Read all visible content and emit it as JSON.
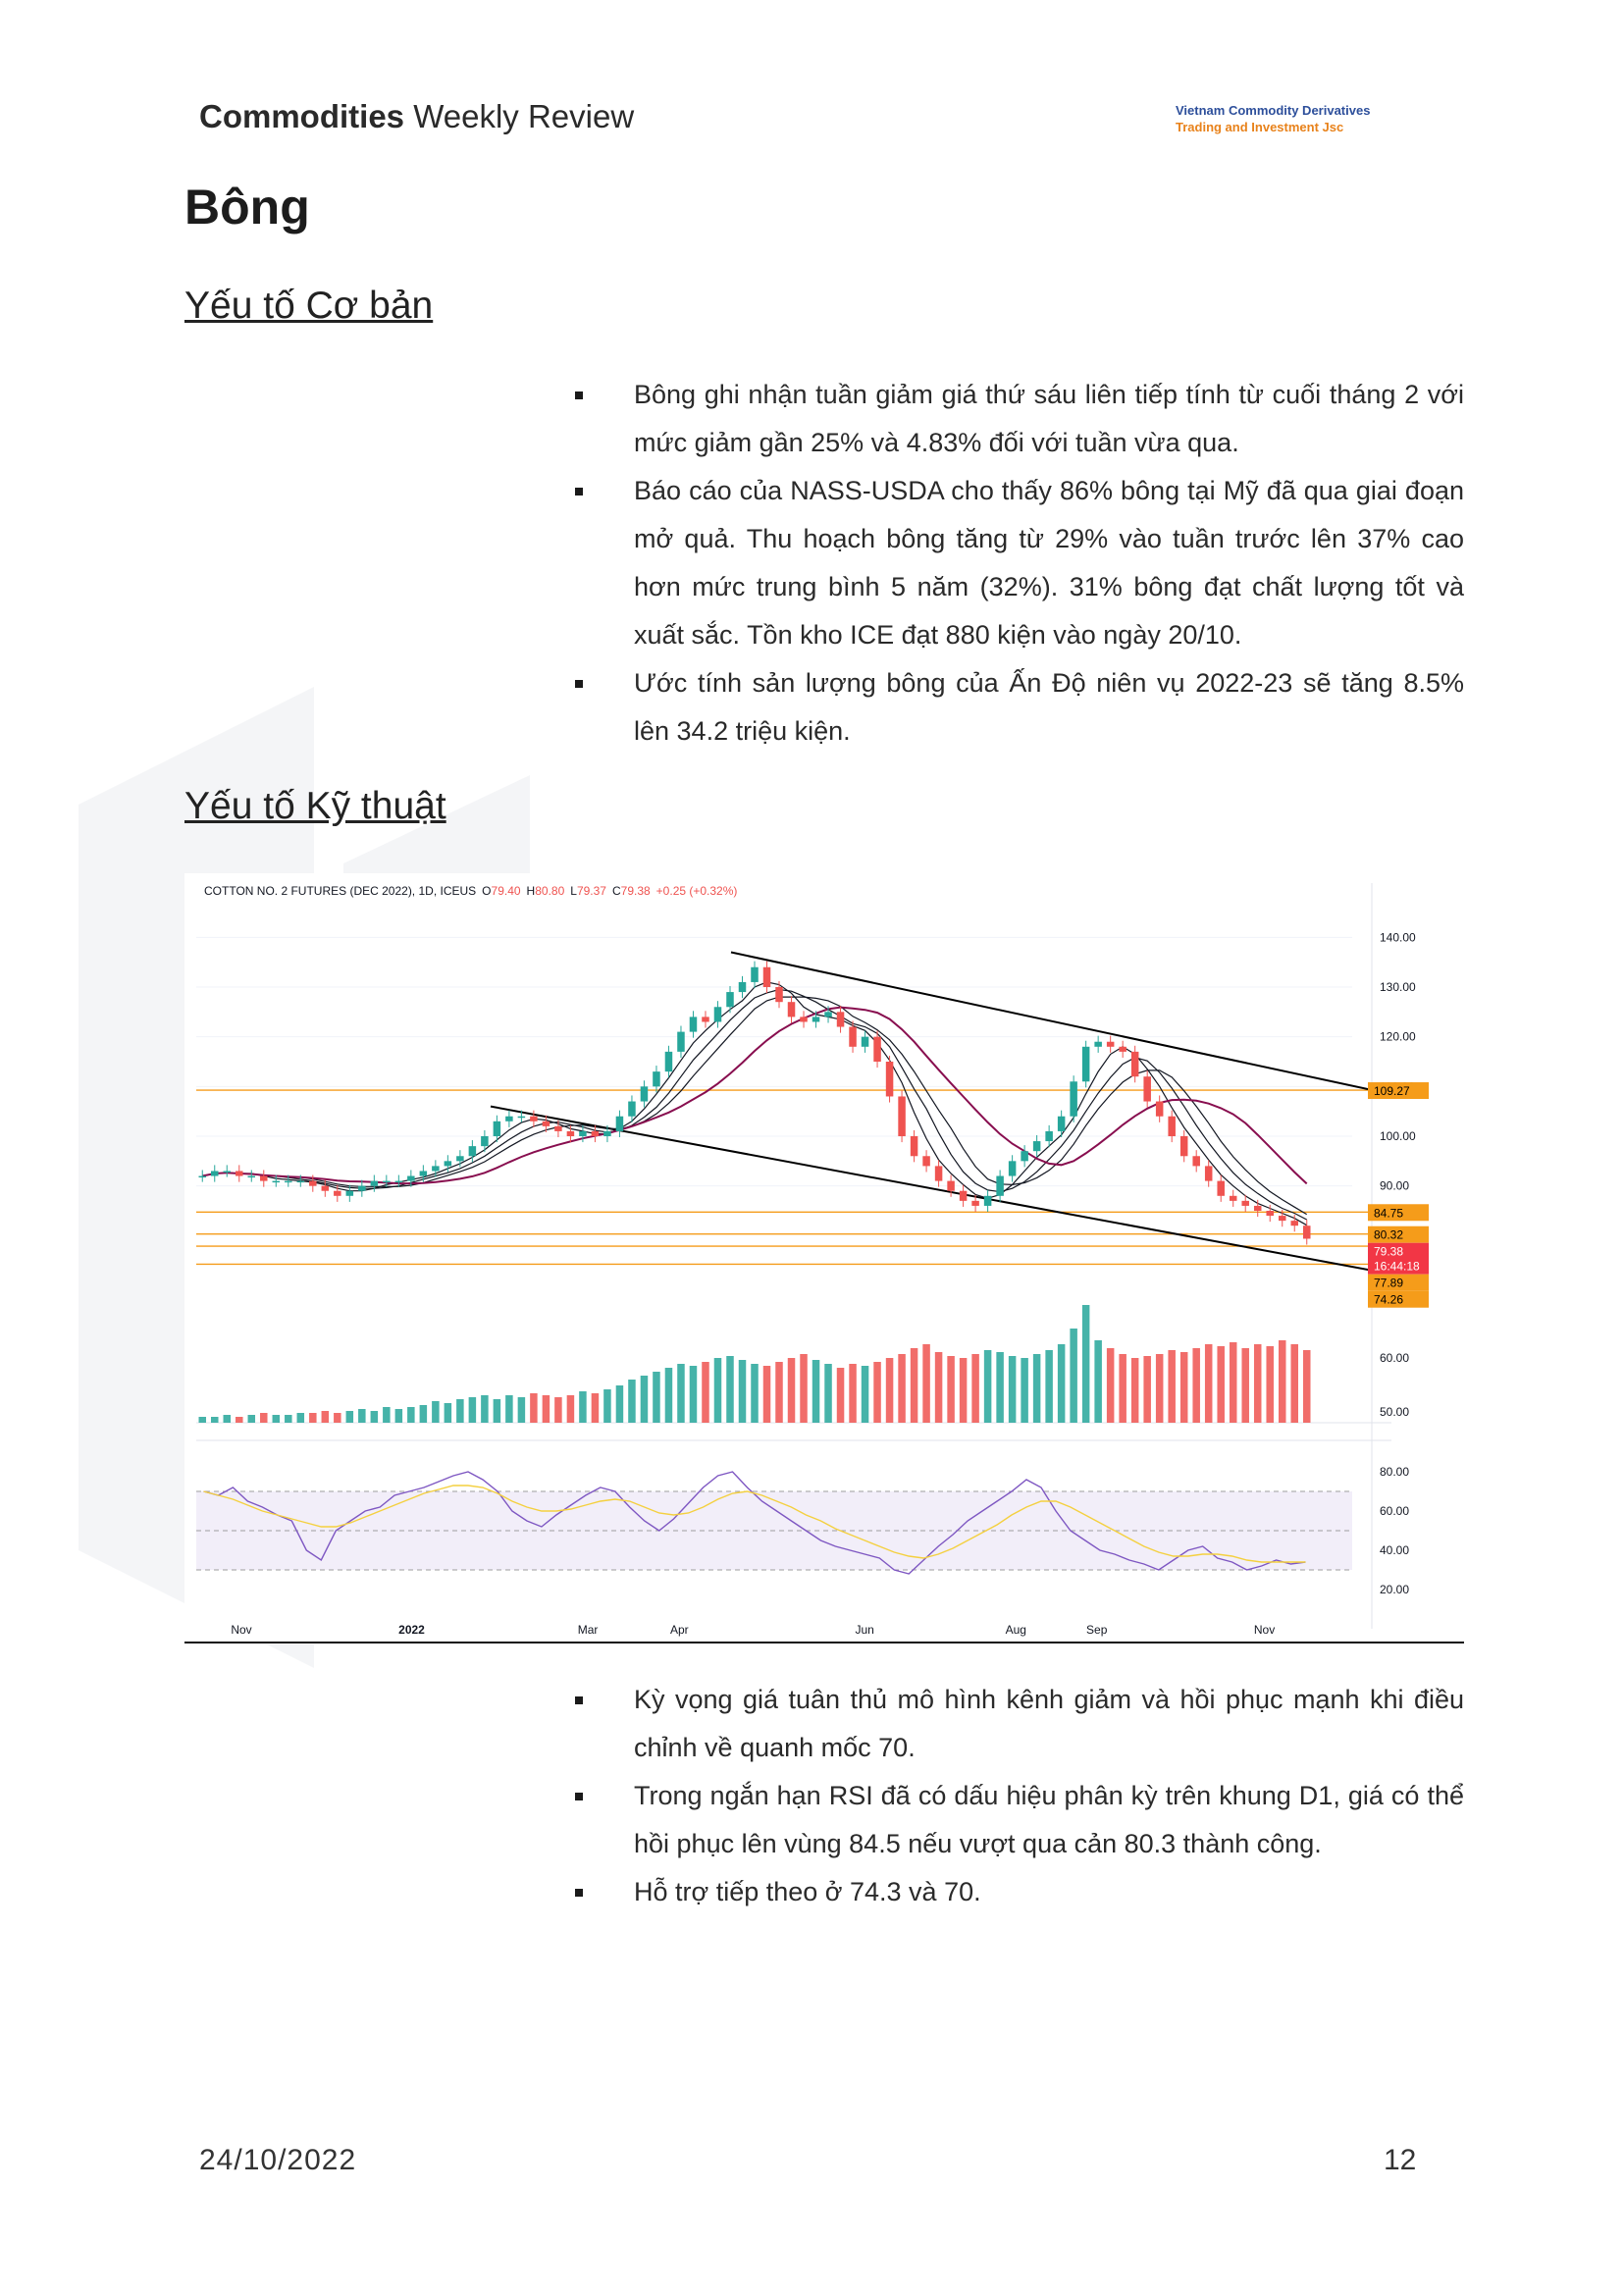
{
  "header": {
    "title_bold": "Commodities",
    "title_rest": " Weekly Review",
    "company_line1": "Vietnam Commodity Derivatives",
    "company_line2": "Trading and Investment Jsc"
  },
  "page_title": "Bông",
  "sections": {
    "fundamental_title": "Yếu tố Cơ bản",
    "technical_title": "Yếu tố Kỹ thuật"
  },
  "fundamental_bullets": [
    "Bông ghi nhận tuần giảm giá thứ sáu liên tiếp tính từ cuối tháng 2 với mức giảm gần 25% và 4.83% đối với tuần vừa qua.",
    "Báo cáo của NASS-USDA cho thấy 86% bông tại Mỹ đã qua giai đoạn mở quả. Thu hoạch bông tăng từ 29% vào tuần trước lên 37% cao hơn mức trung bình 5 năm (32%). 31% bông đạt chất lượng tốt và xuất sắc. Tồn kho ICE đạt 880 kiện vào ngày 20/10.",
    "Ước tính sản lượng bông của Ấn Độ niên vụ 2022-23 sẽ tăng 8.5% lên 34.2 triệu kiện."
  ],
  "technical_bullets": [
    "Kỳ vọng giá tuân thủ mô hình kênh giảm và hồi phục mạnh khi điều chỉnh về quanh mốc 70.",
    "Trong ngắn hạn RSI đã có dấu hiệu phân kỳ trên khung D1, giá có thể hồi phục lên vùng 84.5 nếu vượt qua cản 80.3 thành công.",
    "Hỗ trợ tiếp theo ở 74.3 và 70."
  ],
  "footer": {
    "date": "24/10/2022",
    "page": "12"
  },
  "chart_data": {
    "type": "candlestick",
    "legend": {
      "symbol": "COTTON NO. 2 FUTURES (DEC 2022), 1D, ICEUS",
      "o_label": "O",
      "o": "79.40",
      "h_label": "H",
      "h": "80.80",
      "l_label": "L",
      "l": "79.37",
      "c_label": "C",
      "c": "79.38",
      "change": "+0.25 (+0.32%)"
    },
    "price_ticks": [
      "140.00",
      "130.00",
      "120.00",
      "110.00",
      "100.00",
      "90.00"
    ],
    "volume_ticks": [
      "60.00",
      "50.00"
    ],
    "rsi_ticks": [
      "80.00",
      "60.00",
      "40.00",
      "20.00"
    ],
    "x_ticks": [
      "Nov",
      "2022",
      "Mar",
      "Apr",
      "Jun",
      "Aug",
      "Sep",
      "Nov"
    ],
    "price_range": [
      70,
      145
    ],
    "horizontal_levels": [
      {
        "value": 109.27,
        "label": "109.27"
      },
      {
        "value": 84.75,
        "label": "84.75"
      },
      {
        "value": 80.32,
        "label": "80.32"
      },
      {
        "value": 77.89,
        "label": "77.89"
      },
      {
        "value": 74.26,
        "label": "74.26"
      }
    ],
    "last_price": {
      "value": 79.38,
      "label": "79.38",
      "countdown": "16:44:18"
    },
    "colors": {
      "up": "#26a69a",
      "down": "#ef5350",
      "level": "#f59c1a",
      "last": "#f23645",
      "rsi": "#7e57c2",
      "rsi_ma": "#f4d03f",
      "ma_long": "#880e4f"
    },
    "closes": [
      92,
      93,
      93,
      92,
      92,
      91,
      91,
      91,
      91,
      90,
      89,
      88,
      89,
      90,
      91,
      91,
      91,
      92,
      93,
      94,
      95,
      96,
      98,
      100,
      103,
      104,
      104,
      103,
      102,
      101,
      100,
      101,
      100,
      101,
      104,
      107,
      110,
      113,
      117,
      121,
      124,
      123,
      126,
      129,
      131,
      134,
      130,
      127,
      124,
      123,
      124,
      125,
      122,
      118,
      120,
      115,
      108,
      100,
      96,
      94,
      91,
      89,
      87,
      86,
      88,
      92,
      95,
      97,
      99,
      101,
      104,
      111,
      118,
      119,
      118,
      117,
      112,
      107,
      104,
      100,
      96,
      94,
      91,
      88,
      87,
      86,
      85,
      84,
      83,
      82,
      79.38
    ],
    "volumes": [
      3,
      3,
      4,
      3,
      4,
      5,
      4,
      4,
      5,
      5,
      6,
      5,
      6,
      7,
      6,
      8,
      7,
      8,
      9,
      11,
      10,
      12,
      13,
      14,
      12,
      14,
      13,
      15,
      14,
      13,
      14,
      16,
      15,
      17,
      19,
      22,
      24,
      26,
      28,
      30,
      29,
      31,
      33,
      34,
      32,
      30,
      29,
      31,
      33,
      35,
      32,
      30,
      28,
      30,
      29,
      31,
      33,
      35,
      38,
      40,
      36,
      34,
      33,
      35,
      37,
      36,
      34,
      33,
      35,
      37,
      40,
      48,
      60,
      42,
      38,
      35,
      33,
      34,
      35,
      37,
      36,
      38,
      40,
      39,
      41,
      38,
      40,
      39,
      42,
      40,
      37
    ],
    "rsi": [
      70,
      68,
      72,
      65,
      62,
      58,
      55,
      40,
      35,
      50,
      55,
      60,
      62,
      68,
      70,
      72,
      75,
      78,
      80,
      76,
      70,
      60,
      55,
      52,
      58,
      63,
      68,
      72,
      70,
      62,
      55,
      50,
      56,
      64,
      72,
      78,
      80,
      72,
      65,
      60,
      55,
      50,
      45,
      42,
      40,
      38,
      36,
      30,
      28,
      35,
      42,
      48,
      55,
      60,
      65,
      70,
      76,
      72,
      60,
      50,
      45,
      40,
      38,
      35,
      33,
      30,
      35,
      40,
      42,
      36,
      34,
      30,
      32,
      35,
      33,
      34
    ],
    "rsi_ma": [
      70,
      68,
      66,
      63,
      60,
      58,
      56,
      54,
      52,
      52,
      54,
      57,
      60,
      63,
      66,
      69,
      71,
      73,
      73,
      72,
      69,
      65,
      62,
      60,
      60,
      61,
      63,
      65,
      66,
      65,
      62,
      59,
      58,
      59,
      62,
      66,
      69,
      70,
      68,
      65,
      62,
      58,
      55,
      51,
      48,
      45,
      42,
      39,
      37,
      36,
      38,
      41,
      45,
      49,
      53,
      58,
      62,
      65,
      65,
      62,
      58,
      54,
      50,
      46,
      42,
      39,
      37,
      37,
      38,
      38,
      37,
      35,
      34,
      34,
      34,
      34
    ]
  }
}
